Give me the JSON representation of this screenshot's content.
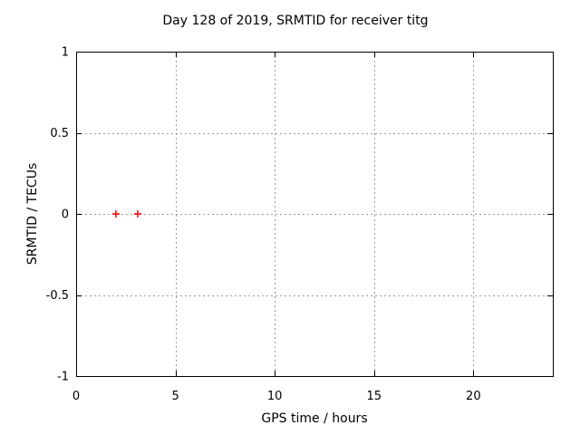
{
  "chart_data": {
    "type": "scatter",
    "title": "Day 128 of 2019, SRMTID for receiver titg",
    "xlabel": "GPS time / hours",
    "ylabel": "SRMTID / TECUs",
    "xlim": [
      0,
      24
    ],
    "ylim": [
      -1,
      1
    ],
    "xticks": [
      {
        "value": 0,
        "label": "0"
      },
      {
        "value": 5,
        "label": "5"
      },
      {
        "value": 10,
        "label": "10"
      },
      {
        "value": 15,
        "label": "15"
      },
      {
        "value": 20,
        "label": "20"
      }
    ],
    "yticks": [
      {
        "value": -1,
        "label": "-1"
      },
      {
        "value": -0.5,
        "label": "-0.5"
      },
      {
        "value": 0,
        "label": "0"
      },
      {
        "value": 0.5,
        "label": "0.5"
      },
      {
        "value": 1,
        "label": "1"
      }
    ],
    "grid": true,
    "legend": "none",
    "series": [
      {
        "name": "SRMTID",
        "marker": "plus",
        "color": "#ff0000",
        "points": [
          [
            2.0,
            0.0
          ],
          [
            3.1,
            0.0
          ]
        ]
      }
    ],
    "colors": {
      "background": "#ffffff",
      "border": "#000000",
      "grid": "#9a9a9a",
      "text": "#000000",
      "marker": "#ff0000"
    }
  }
}
